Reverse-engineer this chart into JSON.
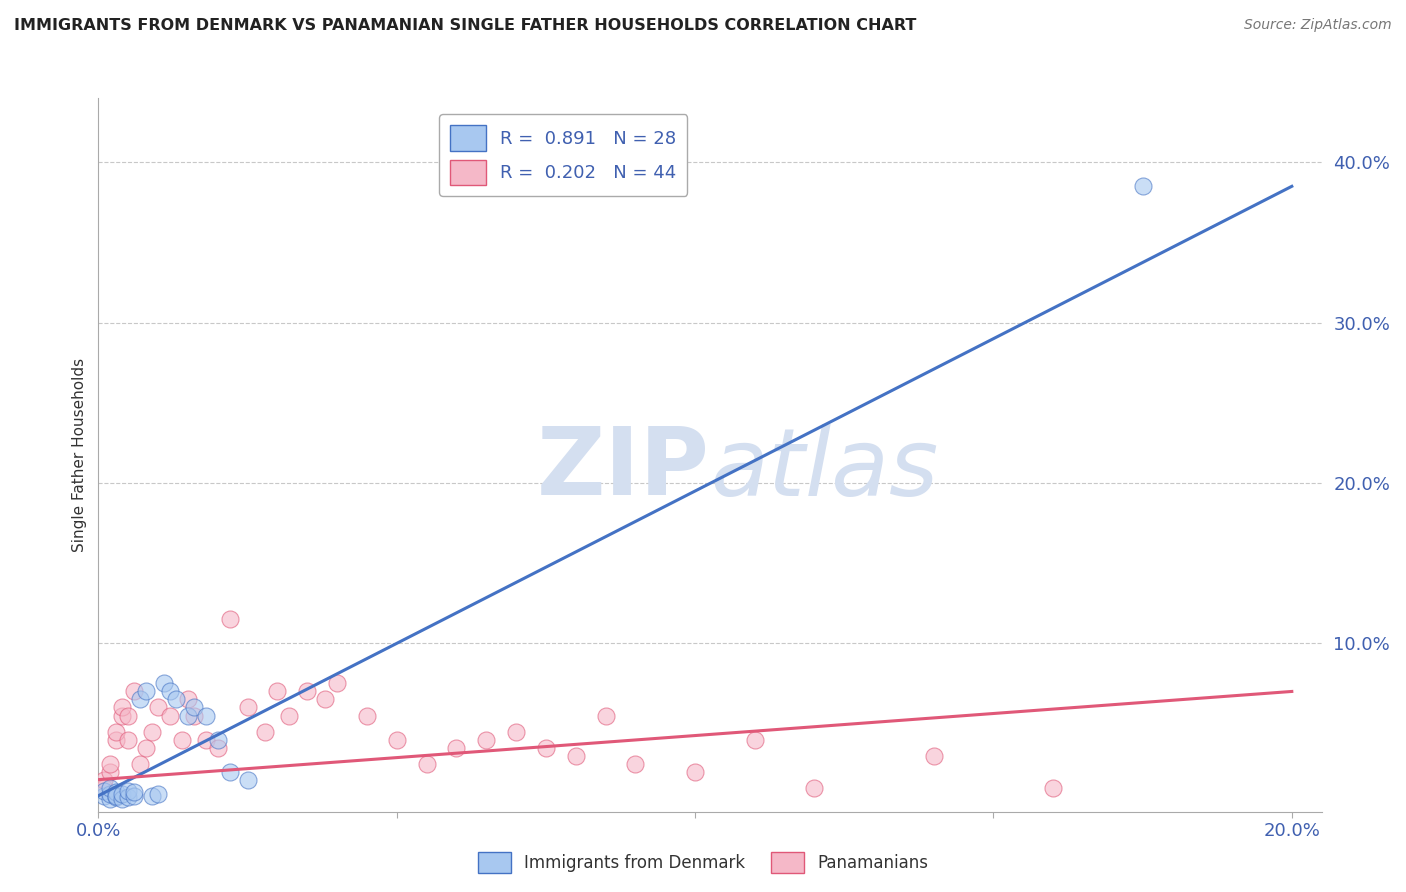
{
  "title": "IMMIGRANTS FROM DENMARK VS PANAMANIAN SINGLE FATHER HOUSEHOLDS CORRELATION CHART",
  "source": "Source: ZipAtlas.com",
  "ylabel_label": "Single Father Households",
  "legend_labels_bottom": [
    "Immigrants from Denmark",
    "Panamanians"
  ],
  "blue_scatter_x": [
    0.001,
    0.001,
    0.002,
    0.002,
    0.002,
    0.003,
    0.003,
    0.003,
    0.004,
    0.004,
    0.005,
    0.005,
    0.006,
    0.006,
    0.007,
    0.008,
    0.009,
    0.01,
    0.011,
    0.012,
    0.013,
    0.015,
    0.016,
    0.018,
    0.02,
    0.022,
    0.025,
    0.175
  ],
  "blue_scatter_y": [
    0.005,
    0.008,
    0.003,
    0.006,
    0.01,
    0.004,
    0.007,
    0.005,
    0.003,
    0.006,
    0.004,
    0.008,
    0.005,
    0.007,
    0.065,
    0.07,
    0.005,
    0.006,
    0.075,
    0.07,
    0.065,
    0.055,
    0.06,
    0.055,
    0.04,
    0.02,
    0.015,
    0.385
  ],
  "pink_scatter_x": [
    0.001,
    0.001,
    0.002,
    0.002,
    0.003,
    0.003,
    0.004,
    0.004,
    0.005,
    0.005,
    0.006,
    0.007,
    0.008,
    0.009,
    0.01,
    0.012,
    0.014,
    0.015,
    0.016,
    0.018,
    0.02,
    0.022,
    0.025,
    0.028,
    0.03,
    0.032,
    0.035,
    0.038,
    0.04,
    0.045,
    0.05,
    0.055,
    0.06,
    0.065,
    0.07,
    0.075,
    0.08,
    0.085,
    0.09,
    0.1,
    0.11,
    0.12,
    0.14,
    0.16
  ],
  "pink_scatter_y": [
    0.01,
    0.015,
    0.02,
    0.025,
    0.04,
    0.045,
    0.055,
    0.06,
    0.04,
    0.055,
    0.07,
    0.025,
    0.035,
    0.045,
    0.06,
    0.055,
    0.04,
    0.065,
    0.055,
    0.04,
    0.035,
    0.115,
    0.06,
    0.045,
    0.07,
    0.055,
    0.07,
    0.065,
    0.075,
    0.055,
    0.04,
    0.025,
    0.035,
    0.04,
    0.045,
    0.035,
    0.03,
    0.055,
    0.025,
    0.02,
    0.04,
    0.01,
    0.03,
    0.01
  ],
  "blue_line_x": [
    0.0,
    0.2
  ],
  "blue_line_y": [
    0.005,
    0.385
  ],
  "pink_line_x": [
    0.0,
    0.2
  ],
  "pink_line_y": [
    0.015,
    0.07
  ],
  "xlim": [
    0.0,
    0.205
  ],
  "ylim": [
    -0.005,
    0.44
  ],
  "blue_color": "#a8c8f0",
  "pink_color": "#f5b8c8",
  "blue_line_color": "#4472c4",
  "pink_line_color": "#e05878",
  "watermark_color": "#d4dff0",
  "background_color": "#ffffff",
  "grid_color": "#c8c8c8"
}
